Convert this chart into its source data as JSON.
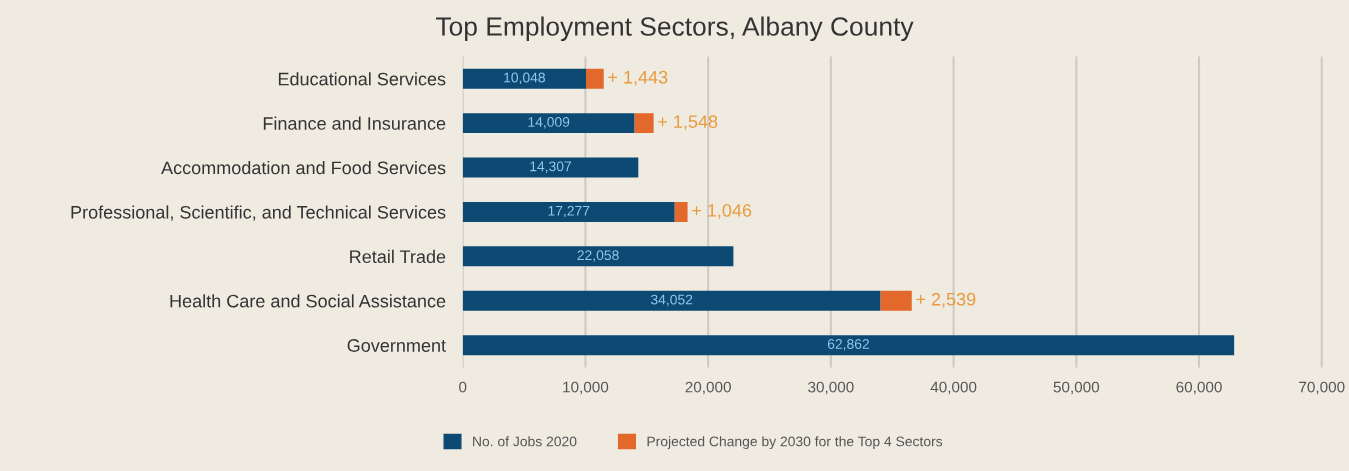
{
  "chart_data": {
    "type": "bar",
    "orientation": "horizontal",
    "stacked": true,
    "title": "Top Employment Sectors, Albany County",
    "categories": [
      "Educational Services",
      "Finance and Insurance",
      "Accommodation and Food Services",
      "Professional, Scientific, and Technical Services",
      "Retail Trade",
      "Health Care and Social Assistance",
      "Government"
    ],
    "series": [
      {
        "name": "No. of Jobs 2020",
        "color": "#0d4a73",
        "values": [
          10048,
          14009,
          14307,
          17277,
          22058,
          34052,
          62862
        ],
        "value_labels": [
          "10,048",
          "14,009",
          "14,307",
          "17,277",
          "22,058",
          "34,052",
          "62,862"
        ]
      },
      {
        "name": "Projected Change by 2030 for the Top 4 Sectors",
        "color": "#e2682b",
        "values": [
          1443,
          1548,
          null,
          1046,
          null,
          2539,
          null
        ],
        "value_labels": [
          "+ 1,443",
          "+ 1,548",
          null,
          "+ 1,046",
          null,
          "+ 2,539",
          null
        ]
      }
    ],
    "xlim": [
      0,
      72000
    ],
    "xticks": [
      {
        "value": 0,
        "label": "0"
      },
      {
        "value": 10000,
        "label": "10,000"
      },
      {
        "value": 20000,
        "label": "20,000"
      },
      {
        "value": 30000,
        "label": "30,000"
      },
      {
        "value": 40000,
        "label": "40,000"
      },
      {
        "value": 50000,
        "label": "50,000"
      },
      {
        "value": 60000,
        "label": "60,000"
      },
      {
        "value": 70000,
        "label": "70,000"
      }
    ],
    "grid": "x",
    "legend": "bottom"
  }
}
